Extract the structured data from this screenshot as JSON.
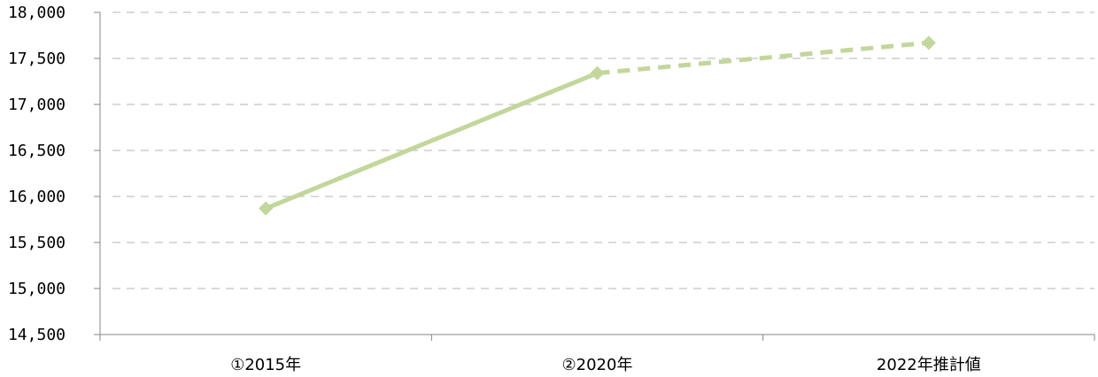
{
  "chart_data": {
    "type": "line",
    "title": "",
    "xlabel": "",
    "ylabel": "",
    "ylim": [
      14500,
      18000
    ],
    "ytick_step": 500,
    "ytick_labels": [
      "14,500",
      "15,000",
      "15,500",
      "16,000",
      "16,500",
      "17,000",
      "17,500",
      "18,000"
    ],
    "grid": "horizontal-dashed",
    "categories": [
      "①2015年",
      "②2020年",
      "2022年推計値"
    ],
    "series": [
      {
        "values": [
          15870,
          17340,
          17670
        ],
        "color": "#c3d69b",
        "marker": "diamond",
        "segment_styles": [
          "solid",
          "dashed"
        ]
      }
    ]
  }
}
